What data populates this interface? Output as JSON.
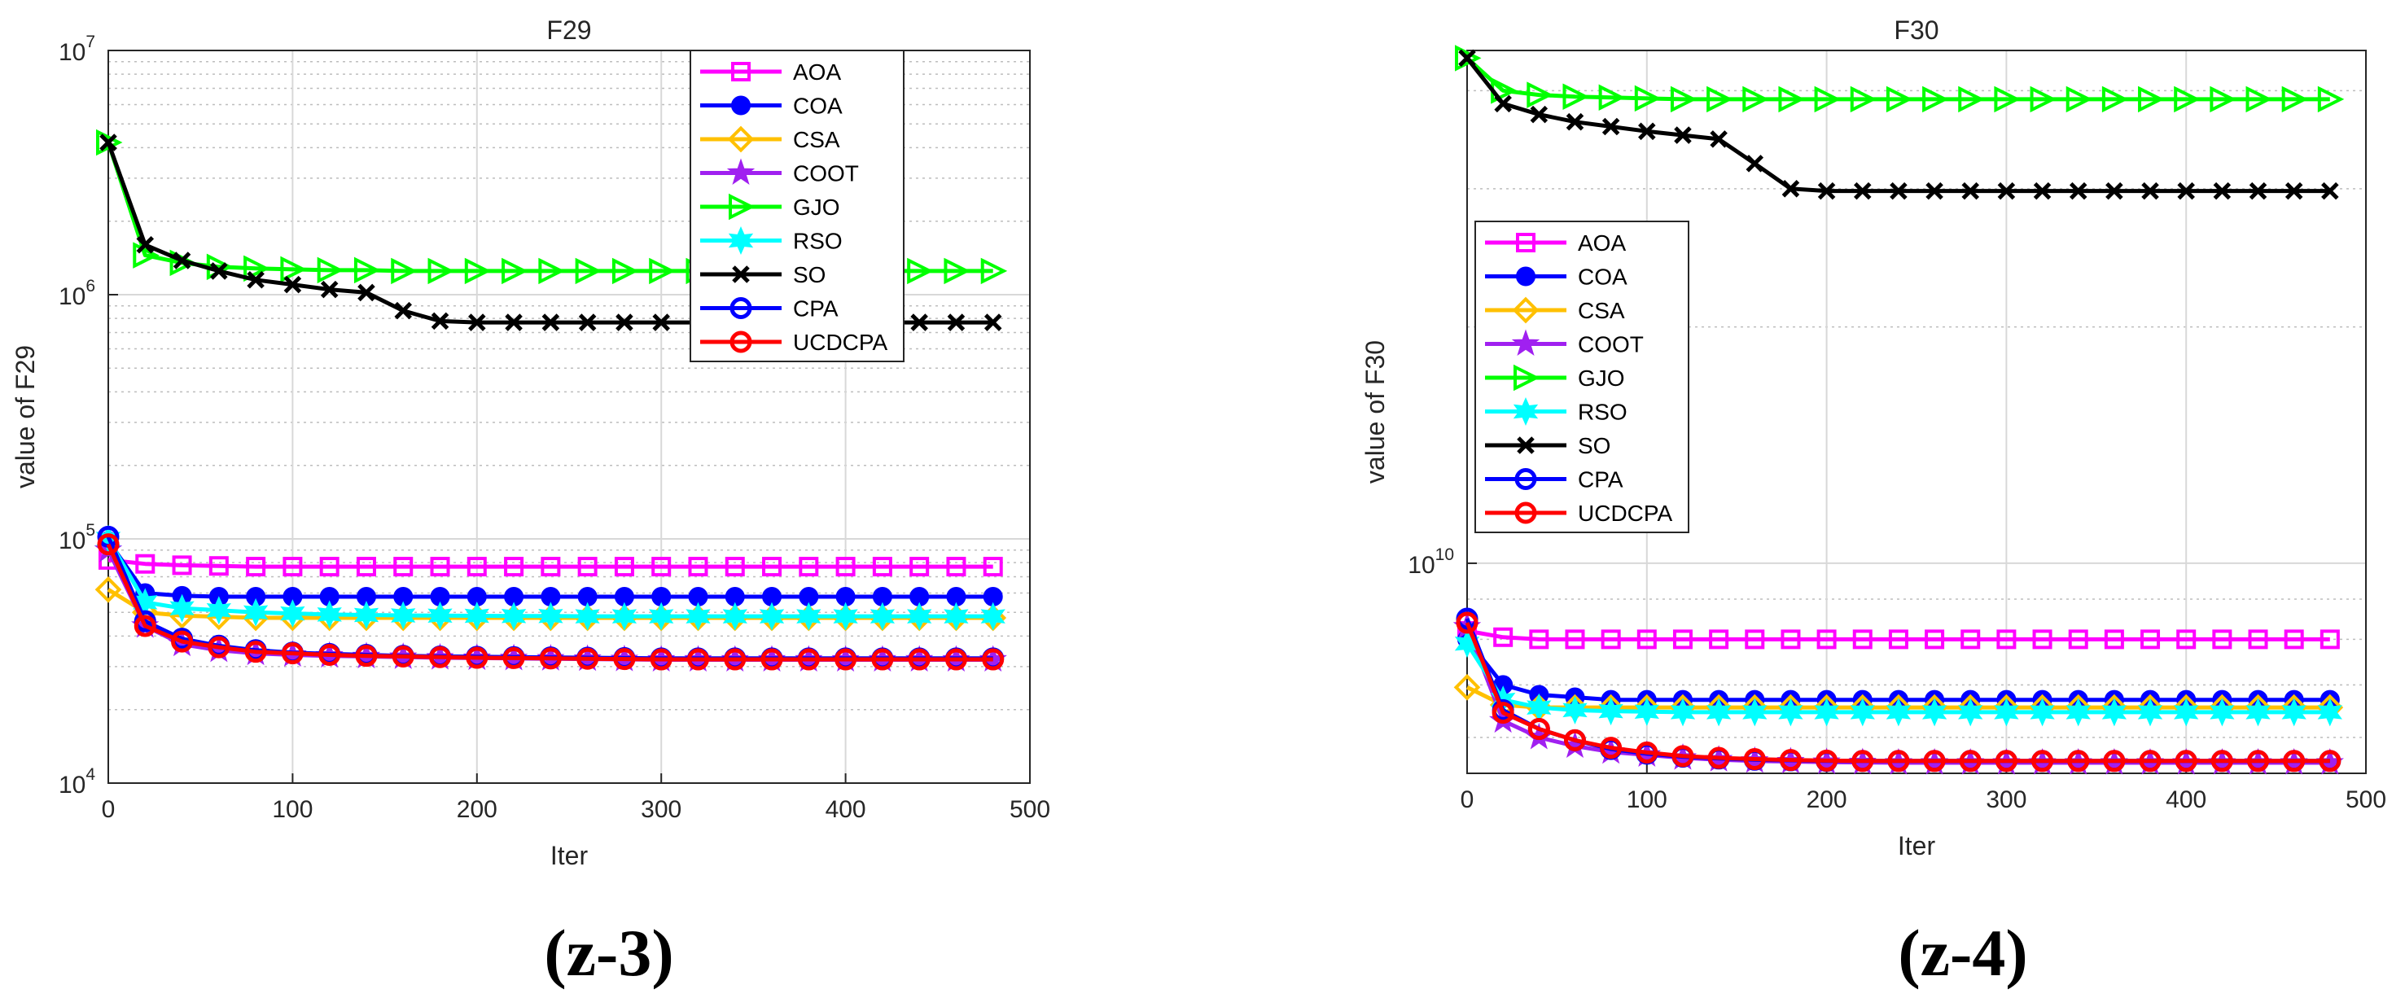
{
  "captions": {
    "left": "(z-3)",
    "right": "(z-4)"
  },
  "legend_entries": [
    "AOA",
    "COA",
    "CSA",
    "COOT",
    "GJO",
    "RSO",
    "SO",
    "CPA",
    "UCDCPA"
  ],
  "series_styles": {
    "AOA": {
      "color": "#ff00ff",
      "marker": "square"
    },
    "COA": {
      "color": "#0000ff",
      "marker": "filled-circle"
    },
    "CSA": {
      "color": "#ffc000",
      "marker": "diamond"
    },
    "COOT": {
      "color": "#a020f0",
      "marker": "star"
    },
    "GJO": {
      "color": "#00ff00",
      "marker": "triangle-right"
    },
    "RSO": {
      "color": "#00ffff",
      "marker": "hexagram"
    },
    "SO": {
      "color": "#000000",
      "marker": "x"
    },
    "CPA": {
      "color": "#0000ff",
      "marker": "circle"
    },
    "UCDCPA": {
      "color": "#ff0000",
      "marker": "circle"
    }
  },
  "chart_data": [
    {
      "type": "line",
      "title": "F29",
      "xlabel": "Iter",
      "ylabel": "value of F29",
      "yscale": "log",
      "xlim": [
        0,
        500
      ],
      "ylim": [
        10000,
        10000000
      ],
      "xticks": [
        "0",
        "100",
        "200",
        "300",
        "400",
        "500"
      ],
      "yticks": [
        {
          "base": "10",
          "exp": "4",
          "value": 10000
        },
        {
          "base": "10",
          "exp": "5",
          "value": 100000
        },
        {
          "base": "10",
          "exp": "6",
          "value": 1000000
        },
        {
          "base": "10",
          "exp": "7",
          "value": 10000000
        }
      ],
      "legend_position": "top-right",
      "x": [
        0,
        20,
        40,
        60,
        80,
        100,
        120,
        140,
        160,
        180,
        200,
        220,
        240,
        260,
        280,
        300,
        320,
        340,
        360,
        380,
        400,
        420,
        440,
        460,
        480
      ],
      "series": [
        {
          "name": "AOA",
          "values": [
            82000,
            79000,
            78000,
            77500,
            77000,
            77000,
            77000,
            77000,
            77000,
            77000,
            77000,
            77000,
            77000,
            77000,
            77000,
            77000,
            77000,
            77000,
            77000,
            77000,
            77000,
            77000,
            77000,
            77000,
            77000
          ]
        },
        {
          "name": "COA",
          "values": [
            98000,
            60000,
            58500,
            58000,
            58000,
            58000,
            58000,
            58000,
            58000,
            58000,
            58000,
            58000,
            58000,
            58000,
            58000,
            58000,
            58000,
            58000,
            58000,
            58000,
            58000,
            58000,
            58000,
            58000,
            58000
          ]
        },
        {
          "name": "CSA",
          "values": [
            62000,
            50000,
            48500,
            48000,
            47500,
            47500,
            47500,
            47500,
            47500,
            47500,
            47500,
            47500,
            47500,
            47500,
            47500,
            47500,
            47500,
            47500,
            47500,
            47500,
            47500,
            47500,
            47500,
            47500,
            47500
          ]
        },
        {
          "name": "COOT",
          "values": [
            90000,
            44000,
            37000,
            35000,
            34000,
            33500,
            33200,
            33000,
            32800,
            32600,
            32500,
            32400,
            32300,
            32200,
            32100,
            32000,
            32000,
            32000,
            32000,
            32000,
            32000,
            32000,
            32000,
            32000,
            32000
          ]
        },
        {
          "name": "GJO",
          "values": [
            4200000,
            1450000,
            1350000,
            1300000,
            1280000,
            1270000,
            1260000,
            1260000,
            1250000,
            1250000,
            1250000,
            1250000,
            1250000,
            1250000,
            1250000,
            1250000,
            1250000,
            1250000,
            1250000,
            1250000,
            1250000,
            1250000,
            1250000,
            1250000,
            1250000
          ]
        },
        {
          "name": "RSO",
          "values": [
            100000,
            55000,
            52000,
            51000,
            50000,
            49500,
            49000,
            48800,
            48600,
            48500,
            48400,
            48300,
            48300,
            48200,
            48200,
            48200,
            48200,
            48200,
            48200,
            48200,
            48200,
            48200,
            48200,
            48200,
            48200
          ]
        },
        {
          "name": "SO",
          "values": [
            4200000,
            1600000,
            1380000,
            1250000,
            1150000,
            1100000,
            1050000,
            1020000,
            860000,
            780000,
            770000,
            770000,
            770000,
            770000,
            770000,
            770000,
            770000,
            770000,
            770000,
            770000,
            770000,
            770000,
            770000,
            770000,
            770000
          ]
        },
        {
          "name": "CPA",
          "values": [
            102000,
            46000,
            39000,
            36500,
            35000,
            34200,
            33800,
            33500,
            33200,
            33000,
            32900,
            32800,
            32700,
            32600,
            32500,
            32400,
            32400,
            32400,
            32400,
            32400,
            32400,
            32400,
            32400,
            32400,
            32400
          ]
        },
        {
          "name": "UCDCPA",
          "values": [
            95000,
            44000,
            38000,
            36000,
            34500,
            34000,
            33500,
            33200,
            33000,
            32800,
            32600,
            32500,
            32400,
            32300,
            32200,
            32100,
            32100,
            32100,
            32100,
            32100,
            32100,
            32100,
            32100,
            32100,
            32100
          ]
        }
      ]
    },
    {
      "type": "line",
      "title": "F30",
      "xlabel": "Iter",
      "ylabel": "value of F30",
      "yscale": "log",
      "xlim": [
        0,
        500
      ],
      "ylim": [
        5400000000,
        45000000000
      ],
      "xticks": [
        "0",
        "100",
        "200",
        "300",
        "400",
        "500"
      ],
      "yticks": [
        {
          "base": "10",
          "exp": "10",
          "value": 10000000000
        }
      ],
      "legend_position": "middle-left",
      "x": [
        0,
        20,
        40,
        60,
        80,
        100,
        120,
        140,
        160,
        180,
        200,
        220,
        240,
        260,
        280,
        300,
        320,
        340,
        360,
        380,
        400,
        420,
        440,
        460,
        480
      ],
      "series": [
        {
          "name": "AOA",
          "values": [
            8200000000,
            8050000000,
            8000000000,
            8000000000,
            8000000000,
            8000000000,
            8000000000,
            8000000000,
            8000000000,
            8000000000,
            8000000000,
            8000000000,
            8000000000,
            8000000000,
            8000000000,
            8000000000,
            8000000000,
            8000000000,
            8000000000,
            8000000000,
            8000000000,
            8000000000,
            8000000000,
            8000000000,
            8000000000
          ]
        },
        {
          "name": "COA",
          "values": [
            8000000000,
            7000000000,
            6800000000,
            6750000000,
            6700000000,
            6700000000,
            6700000000,
            6700000000,
            6700000000,
            6700000000,
            6700000000,
            6700000000,
            6700000000,
            6700000000,
            6700000000,
            6700000000,
            6700000000,
            6700000000,
            6700000000,
            6700000000,
            6700000000,
            6700000000,
            6700000000,
            6700000000,
            6700000000
          ]
        },
        {
          "name": "CSA",
          "values": [
            6950000000,
            6600000000,
            6550000000,
            6550000000,
            6550000000,
            6550000000,
            6550000000,
            6550000000,
            6550000000,
            6550000000,
            6550000000,
            6550000000,
            6550000000,
            6550000000,
            6550000000,
            6550000000,
            6550000000,
            6550000000,
            6550000000,
            6550000000,
            6550000000,
            6550000000,
            6550000000,
            6550000000,
            6550000000
          ]
        },
        {
          "name": "COOT",
          "values": [
            8300000000,
            6300000000,
            6000000000,
            5850000000,
            5750000000,
            5700000000,
            5650000000,
            5620000000,
            5600000000,
            5590000000,
            5580000000,
            5575000000,
            5570000000,
            5570000000,
            5570000000,
            5570000000,
            5570000000,
            5570000000,
            5570000000,
            5570000000,
            5570000000,
            5570000000,
            5570000000,
            5570000000,
            5570000000
          ]
        },
        {
          "name": "GJO",
          "values": [
            44000000000,
            40000000000,
            39500000000,
            39300000000,
            39200000000,
            39100000000,
            39000000000,
            39000000000,
            39000000000,
            39000000000,
            39000000000,
            39000000000,
            39000000000,
            39000000000,
            39000000000,
            39000000000,
            39000000000,
            39000000000,
            39000000000,
            39000000000,
            39000000000,
            39000000000,
            39000000000,
            39000000000,
            39000000000
          ]
        },
        {
          "name": "RSO",
          "values": [
            7900000000,
            6700000000,
            6550000000,
            6500000000,
            6480000000,
            6470000000,
            6460000000,
            6460000000,
            6460000000,
            6460000000,
            6460000000,
            6460000000,
            6460000000,
            6460000000,
            6460000000,
            6460000000,
            6460000000,
            6460000000,
            6460000000,
            6460000000,
            6460000000,
            6460000000,
            6460000000,
            6460000000,
            6460000000
          ]
        },
        {
          "name": "SO",
          "values": [
            44000000000,
            38500000000,
            37300000000,
            36500000000,
            36000000000,
            35500000000,
            35100000000,
            34700000000,
            32300000000,
            30000000000,
            29800000000,
            29800000000,
            29800000000,
            29800000000,
            29800000000,
            29800000000,
            29800000000,
            29800000000,
            29800000000,
            29800000000,
            29800000000,
            29800000000,
            29800000000,
            29800000000,
            29800000000
          ]
        },
        {
          "name": "CPA",
          "values": [
            8500000000,
            6500000000,
            6150000000,
            5950000000,
            5800000000,
            5720000000,
            5670000000,
            5640000000,
            5620000000,
            5610000000,
            5600000000,
            5600000000,
            5600000000,
            5600000000,
            5600000000,
            5600000000,
            5600000000,
            5600000000,
            5600000000,
            5600000000,
            5600000000,
            5600000000,
            5600000000,
            5600000000,
            5600000000
          ]
        },
        {
          "name": "UCDCPA",
          "values": [
            8400000000,
            6450000000,
            6150000000,
            5950000000,
            5820000000,
            5740000000,
            5680000000,
            5650000000,
            5630000000,
            5615000000,
            5605000000,
            5600000000,
            5600000000,
            5600000000,
            5600000000,
            5600000000,
            5600000000,
            5600000000,
            5600000000,
            5600000000,
            5600000000,
            5600000000,
            5600000000,
            5600000000,
            5600000000
          ]
        }
      ]
    }
  ]
}
